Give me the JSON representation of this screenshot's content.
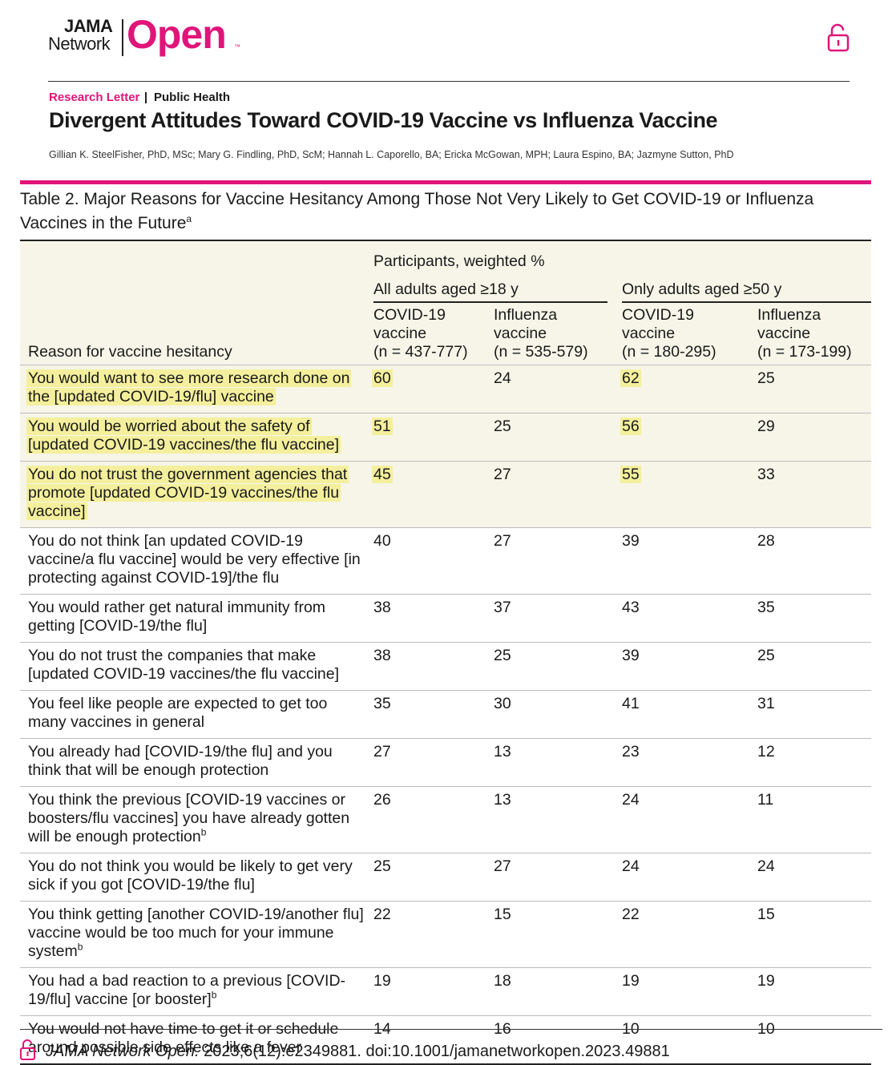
{
  "header": {
    "logo_top": "JAMA",
    "logo_bottom": "Network",
    "logo_open": "Open",
    "logo_tm": "™"
  },
  "article": {
    "category": "Research Letter",
    "section": "Public Health",
    "title": "Divergent Attitudes Toward COVID-19 Vaccine vs Influenza Vaccine",
    "authors": "Gillian K. SteelFisher, PhD, MSc; Mary G. Findling, PhD, ScM; Hannah L. Caporello, BA; Ericka McGowan, MPH; Laura Espino, BA; Jazmyne Sutton, PhD"
  },
  "table": {
    "caption": "Table 2. Major Reasons for Vaccine Hesitancy Among Those Not Very Likely to Get COVID-19 or Influenza Vaccines in the Future",
    "caption_sup": "a",
    "group_header": "Participants, weighted %",
    "subgroups": [
      "All adults aged ≥18 y",
      "Only adults aged ≥50 y"
    ],
    "row_header": "Reason for vaccine hesitancy",
    "columns": [
      {
        "name": "COVID-19 vaccine",
        "n": "(n = 437-777)"
      },
      {
        "name": "Influenza vaccine",
        "n": "(n = 535-579)"
      },
      {
        "name": "COVID-19 vaccine",
        "n": "(n = 180-295)"
      },
      {
        "name": "Influenza vaccine",
        "n": "(n = 173-199)"
      }
    ],
    "highlight_columns": [
      0,
      2
    ],
    "rows": [
      {
        "reason": "You would want to see more research done on the [updated COVID-19/flu] vaccine",
        "values": [
          60,
          24,
          62,
          25
        ],
        "highlighted": true
      },
      {
        "reason": "You would be worried about the safety of [updated COVID-19 vaccines/the flu vaccine]",
        "values": [
          51,
          25,
          56,
          29
        ],
        "highlighted": true
      },
      {
        "reason": "You do not trust the government agencies that promote [updated COVID-19 vaccines/the flu vaccine]",
        "values": [
          45,
          27,
          55,
          33
        ],
        "highlighted": true
      },
      {
        "reason": "You do not think [an updated COVID-19 vaccine/a flu vaccine] would be very effective [in protecting against COVID-19]/the flu",
        "values": [
          40,
          27,
          39,
          28
        ]
      },
      {
        "reason": "You would rather get natural immunity from getting [COVID-19/the flu]",
        "values": [
          38,
          37,
          43,
          35
        ]
      },
      {
        "reason": "You do not trust the companies that make [updated COVID-19 vaccines/the flu vaccine]",
        "values": [
          38,
          25,
          39,
          25
        ]
      },
      {
        "reason": "You feel like people are expected to get too many vaccines in general",
        "values": [
          35,
          30,
          41,
          31
        ]
      },
      {
        "reason": "You already had [COVID-19/the flu] and you think that will be enough protection",
        "values": [
          27,
          13,
          23,
          12
        ]
      },
      {
        "reason": "You think the previous [COVID-19 vaccines or boosters/flu vaccines] you have already gotten will be enough protection",
        "sup": "b",
        "values": [
          26,
          13,
          24,
          11
        ]
      },
      {
        "reason": "You do not think you would be likely to get very sick if you got [COVID-19/the flu]",
        "values": [
          25,
          27,
          24,
          24
        ]
      },
      {
        "reason": "You think getting [another COVID-19/another flu] vaccine would be too much for your immune system",
        "sup": "b",
        "values": [
          22,
          15,
          22,
          15
        ]
      },
      {
        "reason": "You had a bad reaction to a previous [COVID-19/flu] vaccine [or booster]",
        "sup": "b",
        "values": [
          19,
          18,
          19,
          19
        ]
      },
      {
        "reason": "You would not have time to get it or schedule around possible side effects like a fever",
        "values": [
          14,
          16,
          10,
          10
        ]
      }
    ]
  },
  "footer": {
    "journal": "JAMA Network Open.",
    "citation": " 2023;6(12):e2349881. doi:10.1001/jamanetworkopen.2023.49881"
  }
}
